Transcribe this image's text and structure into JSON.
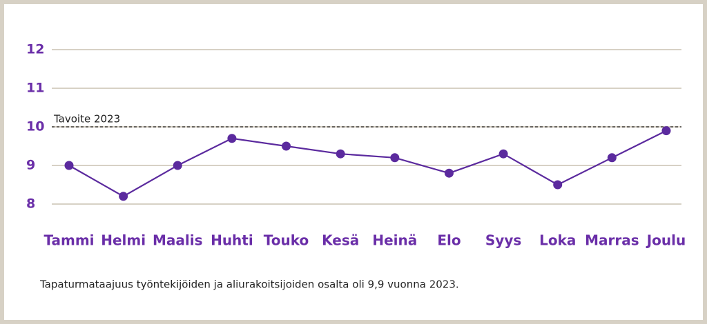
{
  "chart_data": {
    "type": "line",
    "categories": [
      "Tammi",
      "Helmi",
      "Maalis",
      "Huhti",
      "Touko",
      "Kesä",
      "Heinä",
      "Elo",
      "Syys",
      "Loka",
      "Marras",
      "Joulu"
    ],
    "series": [
      {
        "color": "#5b2a9e",
        "values": [
          9,
          8.2,
          9,
          9.7,
          9.5,
          9.3,
          9.2,
          8.8,
          9.3,
          8.5,
          9.2,
          9.9
        ]
      }
    ],
    "ylim": [
      8,
      12
    ],
    "yticks": [
      8,
      9,
      10,
      11,
      12
    ],
    "grid": true,
    "target": {
      "value": 10,
      "label": "Tavoite 2023"
    },
    "note": "Tapaturmataajuus työntekijöiden ja aliurakoitsijoiden osalta oli 9,9 vuonna 2023."
  }
}
